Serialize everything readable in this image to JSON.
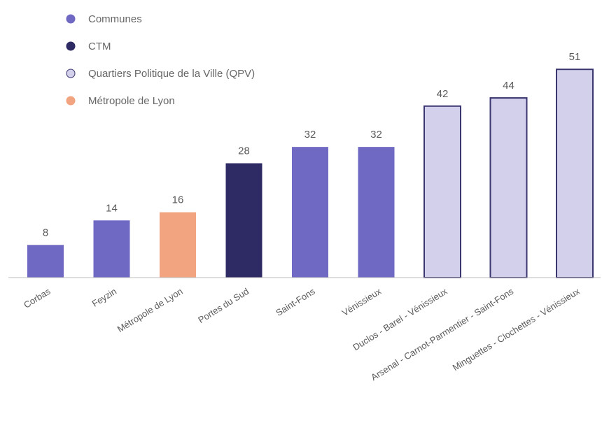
{
  "chart_data": {
    "type": "bar",
    "title": "",
    "xlabel": "",
    "ylabel": "",
    "ylim": [
      0,
      56
    ],
    "grid": false,
    "legend_position": "top-left",
    "legend": [
      {
        "key": "communes",
        "label": "Communes",
        "color": "#6f69c3",
        "stroke": "#6f69c3"
      },
      {
        "key": "ctm",
        "label": "CTM",
        "color": "#2e2a63",
        "stroke": "#2e2a63"
      },
      {
        "key": "qpv",
        "label": "Quartiers Politique de la Ville (QPV)",
        "color": "#d3d0ec",
        "stroke": "#3a3670"
      },
      {
        "key": "metropole",
        "label": "Métropole de Lyon",
        "color": "#f2a37f",
        "stroke": "#f2a37f"
      }
    ],
    "categories": [
      "Corbas",
      "Feyzin",
      "Métropole de Lyon",
      "Portes du Sud",
      "Saint-Fons",
      "Vénissieux",
      "Duclos - Barel - Vénissieux",
      "Arsenal - Carnot-Parmentier - Saint-Fons",
      "Minguettes - Clochettes - Vénissieux"
    ],
    "values": [
      8,
      14,
      16,
      28,
      32,
      32,
      42,
      44,
      51
    ],
    "value_labels": [
      "8",
      "14",
      "16",
      "28",
      "32",
      "32",
      "42",
      "44",
      "51"
    ],
    "groups": [
      "communes",
      "communes",
      "metropole",
      "ctm",
      "communes",
      "communes",
      "qpv",
      "qpv",
      "qpv"
    ]
  }
}
